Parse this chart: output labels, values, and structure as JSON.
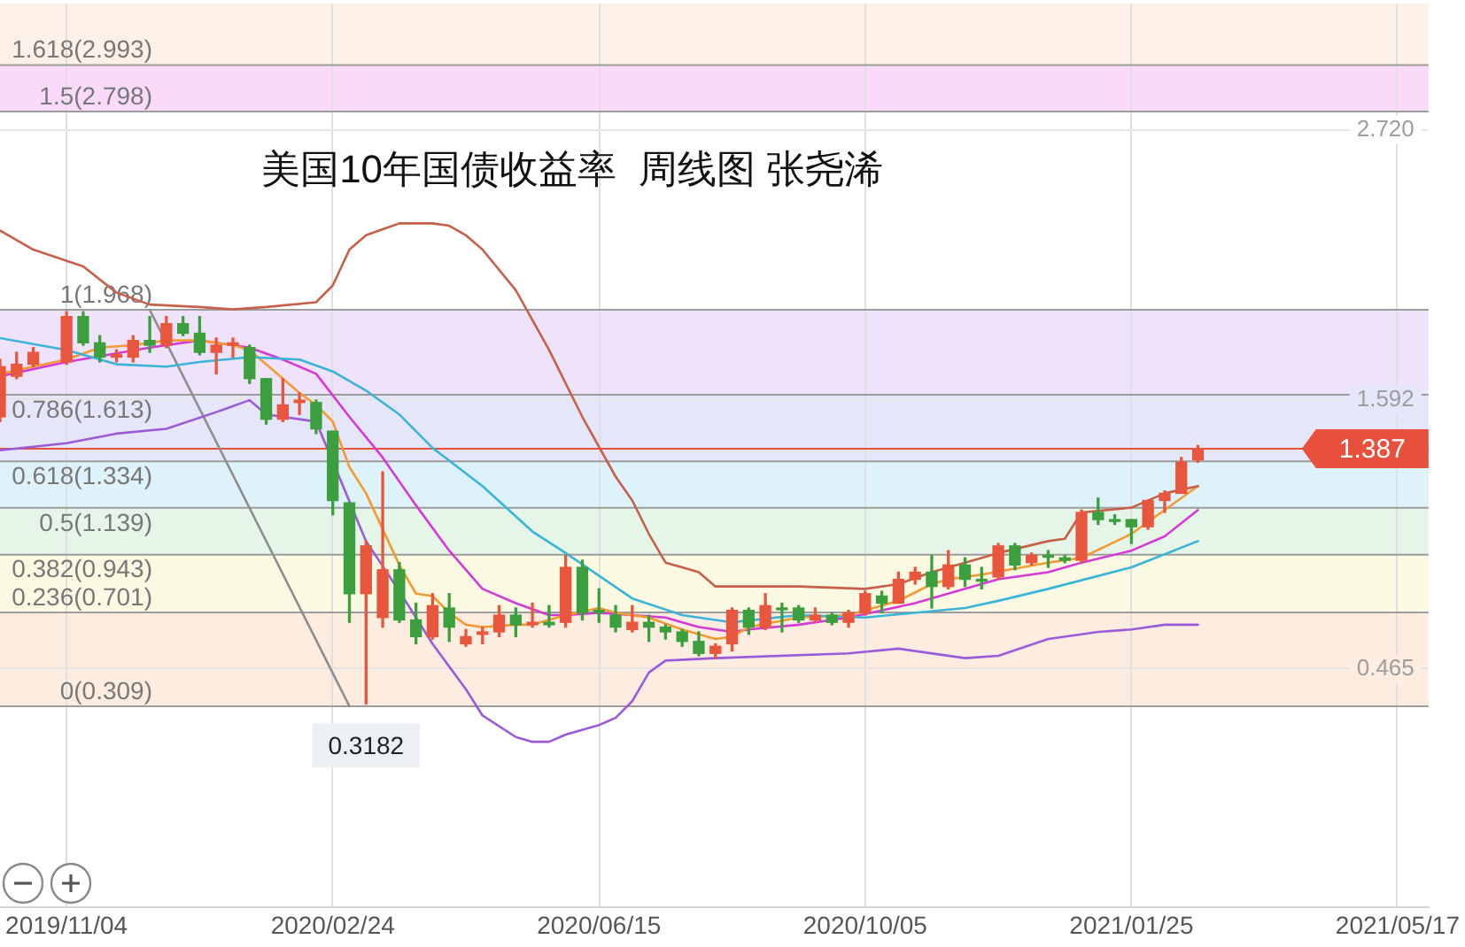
{
  "chart_data": {
    "type": "candlestick",
    "title": "美国10年国债收益率  周线图 张尧浠",
    "x": [
      "2019-10-07",
      "2019-10-14",
      "2019-10-21",
      "2019-11-04",
      "2019-11-11",
      "2019-11-18",
      "2019-11-25",
      "2019-12-02",
      "2019-12-09",
      "2019-12-16",
      "2019-12-23",
      "2019-12-30",
      "2020-01-06",
      "2020-01-13",
      "2020-01-20",
      "2020-01-27",
      "2020-02-03",
      "2020-02-10",
      "2020-02-17",
      "2020-02-24",
      "2020-03-02",
      "2020-03-09",
      "2020-03-16",
      "2020-03-23",
      "2020-03-30",
      "2020-04-06",
      "2020-04-13",
      "2020-04-20",
      "2020-04-27",
      "2020-05-04",
      "2020-05-11",
      "2020-05-18",
      "2020-05-25",
      "2020-06-01",
      "2020-06-08",
      "2020-06-15",
      "2020-06-22",
      "2020-06-29",
      "2020-07-06",
      "2020-07-13",
      "2020-07-20",
      "2020-07-27",
      "2020-08-03",
      "2020-08-10",
      "2020-08-17",
      "2020-08-24",
      "2020-08-31",
      "2020-09-07",
      "2020-09-14",
      "2020-09-21",
      "2020-09-28",
      "2020-10-05",
      "2020-10-12",
      "2020-10-19",
      "2020-10-26",
      "2020-11-02",
      "2020-11-09",
      "2020-11-16",
      "2020-11-23",
      "2020-11-30",
      "2020-12-07",
      "2020-12-14",
      "2020-12-21",
      "2020-12-28",
      "2021-01-04",
      "2021-01-11",
      "2021-01-18",
      "2021-01-25",
      "2021-02-01",
      "2021-02-08",
      "2021-02-15",
      "2021-02-22"
    ],
    "ohlc": [
      [
        1.52,
        1.76,
        1.5,
        1.73
      ],
      [
        1.69,
        1.79,
        1.68,
        1.74
      ],
      [
        1.74,
        1.81,
        1.73,
        1.79
      ],
      [
        1.75,
        1.96,
        1.74,
        1.94
      ],
      [
        1.94,
        1.96,
        1.82,
        1.83
      ],
      [
        1.83,
        1.86,
        1.75,
        1.77
      ],
      [
        1.77,
        1.8,
        1.75,
        1.78
      ],
      [
        1.77,
        1.86,
        1.75,
        1.84
      ],
      [
        1.84,
        1.94,
        1.79,
        1.82
      ],
      [
        1.82,
        1.94,
        1.81,
        1.91
      ],
      [
        1.91,
        1.94,
        1.86,
        1.87
      ],
      [
        1.87,
        1.94,
        1.78,
        1.79
      ],
      [
        1.79,
        1.85,
        1.7,
        1.82
      ],
      [
        1.82,
        1.85,
        1.77,
        1.83
      ],
      [
        1.81,
        1.82,
        1.66,
        1.68
      ],
      [
        1.68,
        1.68,
        1.49,
        1.51
      ],
      [
        1.51,
        1.68,
        1.5,
        1.57
      ],
      [
        1.58,
        1.62,
        1.53,
        1.59
      ],
      [
        1.58,
        1.59,
        1.45,
        1.47
      ],
      [
        1.46,
        1.46,
        1.11,
        1.17
      ],
      [
        1.16,
        1.16,
        0.66,
        0.78
      ],
      [
        0.78,
        1.0,
        0.3182,
        0.98
      ],
      [
        0.68,
        1.29,
        0.64,
        0.88
      ],
      [
        0.88,
        0.91,
        0.66,
        0.67
      ],
      [
        0.67,
        0.74,
        0.57,
        0.6
      ],
      [
        0.6,
        0.78,
        0.59,
        0.73
      ],
      [
        0.72,
        0.78,
        0.58,
        0.64
      ],
      [
        0.57,
        0.63,
        0.56,
        0.6
      ],
      [
        0.61,
        0.64,
        0.57,
        0.62
      ],
      [
        0.62,
        0.73,
        0.6,
        0.69
      ],
      [
        0.69,
        0.72,
        0.6,
        0.65
      ],
      [
        0.65,
        0.74,
        0.64,
        0.66
      ],
      [
        0.66,
        0.73,
        0.64,
        0.65
      ],
      [
        0.66,
        0.94,
        0.64,
        0.89
      ],
      [
        0.89,
        0.92,
        0.67,
        0.7
      ],
      [
        0.71,
        0.8,
        0.66,
        0.7
      ],
      [
        0.69,
        0.73,
        0.62,
        0.64
      ],
      [
        0.63,
        0.73,
        0.62,
        0.66
      ],
      [
        0.66,
        0.69,
        0.58,
        0.64
      ],
      [
        0.64,
        0.65,
        0.59,
        0.62
      ],
      [
        0.62,
        0.63,
        0.56,
        0.58
      ],
      [
        0.58,
        0.62,
        0.52,
        0.53
      ],
      [
        0.53,
        0.57,
        0.51,
        0.56
      ],
      [
        0.57,
        0.72,
        0.54,
        0.71
      ],
      [
        0.71,
        0.72,
        0.61,
        0.64
      ],
      [
        0.64,
        0.78,
        0.63,
        0.73
      ],
      [
        0.72,
        0.74,
        0.62,
        0.72
      ],
      [
        0.72,
        0.73,
        0.66,
        0.67
      ],
      [
        0.67,
        0.72,
        0.66,
        0.69
      ],
      [
        0.69,
        0.7,
        0.65,
        0.66
      ],
      [
        0.66,
        0.71,
        0.64,
        0.7
      ],
      [
        0.7,
        0.79,
        0.69,
        0.78
      ],
      [
        0.77,
        0.79,
        0.7,
        0.74
      ],
      [
        0.74,
        0.87,
        0.74,
        0.84
      ],
      [
        0.84,
        0.89,
        0.82,
        0.87
      ],
      [
        0.87,
        0.94,
        0.72,
        0.81
      ],
      [
        0.81,
        0.96,
        0.8,
        0.9
      ],
      [
        0.9,
        0.93,
        0.81,
        0.84
      ],
      [
        0.84,
        0.89,
        0.8,
        0.84
      ],
      [
        0.85,
        0.99,
        0.84,
        0.98
      ],
      [
        0.98,
        0.99,
        0.88,
        0.9
      ],
      [
        0.91,
        0.95,
        0.9,
        0.94
      ],
      [
        0.94,
        0.96,
        0.89,
        0.94
      ],
      [
        0.93,
        0.94,
        0.91,
        0.92
      ],
      [
        0.92,
        1.13,
        0.91,
        1.12
      ],
      [
        1.12,
        1.18,
        1.07,
        1.09
      ],
      [
        1.09,
        1.11,
        1.07,
        1.09
      ],
      [
        1.09,
        1.09,
        0.99,
        1.06
      ],
      [
        1.06,
        1.17,
        1.05,
        1.17
      ],
      [
        1.17,
        1.21,
        1.12,
        1.2
      ],
      [
        1.2,
        1.35,
        1.2,
        1.33
      ],
      [
        1.34,
        1.4,
        1.33,
        1.387
      ]
    ],
    "colors": [
      "#e8573d",
      "#e8573d",
      "#e8573d",
      "#e8573d",
      "#3a9f3c",
      "#3a9f3c",
      "#e8573d",
      "#e8573d",
      "#3a9f3c",
      "#e8573d",
      "#3a9f3c",
      "#3a9f3c",
      "#e8573d",
      "#e8573d",
      "#3a9f3c",
      "#3a9f3c",
      "#e8573d",
      "#e8573d",
      "#3a9f3c",
      "#3a9f3c",
      "#3a9f3c",
      "#e8573d",
      "#e8573d",
      "#3a9f3c",
      "#3a9f3c",
      "#e8573d",
      "#3a9f3c",
      "#e8573d",
      "#e8573d",
      "#e8573d",
      "#3a9f3c",
      "#e8573d",
      "#3a9f3c",
      "#e8573d",
      "#3a9f3c",
      "#3a9f3c",
      "#3a9f3c",
      "#e8573d",
      "#3a9f3c",
      "#3a9f3c",
      "#3a9f3c",
      "#3a9f3c",
      "#e8573d",
      "#e8573d",
      "#3a9f3c",
      "#e8573d",
      "#3a9f3c",
      "#3a9f3c",
      "#e8573d",
      "#3a9f3c",
      "#e8573d",
      "#e8573d",
      "#3a9f3c",
      "#e8573d",
      "#e8573d",
      "#3a9f3c",
      "#e8573d",
      "#3a9f3c",
      "#3a9f3c",
      "#e8573d",
      "#3a9f3c",
      "#e8573d",
      "#3a9f3c",
      "#3a9f3c",
      "#e8573d",
      "#3a9f3c",
      "#3a9f3c",
      "#3a9f3c",
      "#e8573d",
      "#e8573d",
      "#e8573d",
      "#e8573d"
    ],
    "series": [
      {
        "type": "line",
        "color": "#c6604a",
        "x": [
          "2019-10-07",
          "2019-10-21",
          "2019-11-11",
          "2019-11-25",
          "2019-12-09",
          "2019-12-30",
          "2020-01-13",
          "2020-01-27",
          "2020-02-17",
          "2020-02-24",
          "2020-03-02",
          "2020-03-09",
          "2020-03-23",
          "2020-04-06",
          "2020-04-13",
          "2020-04-20",
          "2020-04-27",
          "2020-05-11",
          "2020-05-25",
          "2020-06-08",
          "2020-06-22",
          "2020-06-29",
          "2020-07-06",
          "2020-07-13",
          "2020-07-27",
          "2020-08-03",
          "2020-09-07",
          "2020-10-05",
          "2020-10-19",
          "2020-11-02",
          "2020-11-16",
          "2020-11-30",
          "2020-12-21",
          "2020-12-28",
          "2021-01-04",
          "2021-01-25",
          "2021-02-08",
          "2021-02-22"
        ],
        "values": [
          2.3,
          2.22,
          2.15,
          2.04,
          1.99,
          1.98,
          1.97,
          1.98,
          2.0,
          2.07,
          2.22,
          2.28,
          2.33,
          2.33,
          2.32,
          2.28,
          2.22,
          2.05,
          1.8,
          1.52,
          1.27,
          1.17,
          1.03,
          0.91,
          0.87,
          0.81,
          0.81,
          0.8,
          0.82,
          0.87,
          0.91,
          0.95,
          1.0,
          1.01,
          1.12,
          1.14,
          1.2,
          1.23
        ]
      },
      {
        "type": "line",
        "color": "#3ab4d9",
        "x": [
          "2019-10-07",
          "2019-11-04",
          "2019-11-25",
          "2019-12-16",
          "2019-12-30",
          "2020-01-20",
          "2020-02-10",
          "2020-02-24",
          "2020-03-09",
          "2020-03-23",
          "2020-04-06",
          "2020-04-27",
          "2020-05-18",
          "2020-06-01",
          "2020-06-29",
          "2020-07-20",
          "2020-08-10",
          "2020-09-07",
          "2020-10-05",
          "2020-11-16",
          "2020-11-30",
          "2020-12-21",
          "2021-01-25",
          "2021-02-22"
        ],
        "values": [
          1.85,
          1.8,
          1.74,
          1.73,
          1.75,
          1.77,
          1.76,
          1.71,
          1.63,
          1.53,
          1.39,
          1.23,
          1.04,
          0.95,
          0.76,
          0.69,
          0.66,
          0.69,
          0.68,
          0.72,
          0.75,
          0.8,
          0.89,
          1.0
        ]
      },
      {
        "type": "line",
        "color": "#f39a33",
        "x": [
          "2019-10-07",
          "2019-10-21",
          "2019-11-04",
          "2019-11-18",
          "2019-12-02",
          "2019-12-16",
          "2019-12-30",
          "2020-01-13",
          "2020-01-20",
          "2020-01-27",
          "2020-02-03",
          "2020-02-10",
          "2020-02-17",
          "2020-02-24",
          "2020-03-02",
          "2020-03-09",
          "2020-03-16",
          "2020-03-23",
          "2020-03-30",
          "2020-04-06",
          "2020-04-13",
          "2020-04-20",
          "2020-04-27",
          "2020-05-11",
          "2020-05-18",
          "2020-06-01",
          "2020-06-15",
          "2020-06-22",
          "2020-07-06",
          "2020-07-20",
          "2020-08-03",
          "2020-08-10",
          "2020-08-17",
          "2020-09-07",
          "2020-09-28",
          "2020-10-05",
          "2020-10-19",
          "2020-11-02",
          "2020-11-09",
          "2020-11-23",
          "2020-12-21",
          "2021-01-04",
          "2021-01-25",
          "2021-02-08",
          "2021-02-22"
        ],
        "values": [
          1.7,
          1.73,
          1.76,
          1.81,
          1.82,
          1.84,
          1.84,
          1.82,
          1.8,
          1.74,
          1.68,
          1.62,
          1.57,
          1.5,
          1.31,
          1.2,
          1.05,
          0.9,
          0.78,
          0.77,
          0.7,
          0.65,
          0.64,
          0.65,
          0.65,
          0.69,
          0.72,
          0.7,
          0.68,
          0.63,
          0.59,
          0.6,
          0.64,
          0.68,
          0.69,
          0.71,
          0.75,
          0.82,
          0.84,
          0.86,
          0.91,
          0.93,
          1.03,
          1.13,
          1.23
        ]
      },
      {
        "type": "line",
        "color": "#d63ad6",
        "x": [
          "2019-10-07",
          "2019-11-04",
          "2019-12-09",
          "2019-12-30",
          "2020-01-20",
          "2020-02-03",
          "2020-02-17",
          "2020-03-02",
          "2020-03-16",
          "2020-03-30",
          "2020-04-13",
          "2020-04-27",
          "2020-05-11",
          "2020-05-25",
          "2020-06-01",
          "2020-06-15",
          "2020-06-29",
          "2020-07-13",
          "2020-07-27",
          "2020-08-10",
          "2020-08-17",
          "2020-09-07",
          "2020-09-28",
          "2020-10-26",
          "2020-11-16",
          "2020-11-30",
          "2020-12-21",
          "2021-01-04",
          "2021-01-25",
          "2021-02-08",
          "2021-02-22"
        ],
        "values": [
          1.69,
          1.75,
          1.81,
          1.84,
          1.81,
          1.76,
          1.7,
          1.52,
          1.35,
          1.15,
          0.96,
          0.8,
          0.74,
          0.69,
          0.69,
          0.7,
          0.69,
          0.68,
          0.64,
          0.62,
          0.63,
          0.65,
          0.68,
          0.74,
          0.8,
          0.84,
          0.87,
          0.91,
          0.96,
          1.02,
          1.13
        ]
      },
      {
        "type": "line",
        "color": "#9b5bd9",
        "x": [
          "2019-10-07",
          "2019-11-04",
          "2019-11-25",
          "2019-12-16",
          "2020-01-06",
          "2020-01-20",
          "2020-01-27",
          "2020-02-17",
          "2020-03-09",
          "2020-03-23",
          "2020-04-06",
          "2020-04-20",
          "2020-04-27",
          "2020-05-11",
          "2020-05-18",
          "2020-05-25",
          "2020-06-01",
          "2020-06-15",
          "2020-06-22",
          "2020-06-29",
          "2020-07-06",
          "2020-07-13",
          "2020-08-03",
          "2020-09-28",
          "2020-10-19",
          "2020-11-16",
          "2020-11-30",
          "2020-12-21",
          "2021-01-11",
          "2021-01-25",
          "2021-02-08",
          "2021-02-22"
        ],
        "values": [
          1.38,
          1.41,
          1.45,
          1.47,
          1.54,
          1.59,
          1.53,
          1.5,
          1.0,
          0.79,
          0.57,
          0.38,
          0.27,
          0.18,
          0.16,
          0.16,
          0.19,
          0.23,
          0.26,
          0.33,
          0.45,
          0.5,
          0.51,
          0.53,
          0.55,
          0.51,
          0.52,
          0.59,
          0.62,
          0.63,
          0.65,
          0.65
        ]
      },
      {
        "type": "line",
        "color": "#8e8e8e",
        "x": [
          "2019-12-09",
          "2020-03-02"
        ],
        "values": [
          1.968,
          0.309
        ]
      }
    ],
    "xlim": [
      "2019-10-07",
      "2021-05-30"
    ],
    "xticks": [
      {
        "value": "2019-11-04",
        "label": "2019/11/04"
      },
      {
        "value": "2020-02-24",
        "label": "2020/02/24"
      },
      {
        "value": "2020-06-15",
        "label": "2020/06/15"
      },
      {
        "value": "2020-10-05",
        "label": "2020/10/05"
      },
      {
        "value": "2021-01-25",
        "label": "2021/01/25"
      },
      {
        "value": "2021-05-17",
        "label": "2021/05/17"
      }
    ],
    "ylim": [
      -0.53,
      3.25
    ],
    "yticks": [
      0.465,
      1.592,
      {
        "value": 2.72,
        "label": "2.720"
      }
    ],
    "grid": true,
    "marker": "none",
    "bands": [
      {
        "axis": "y",
        "from": 2.993,
        "to": 3.25,
        "color": "#fdf1e7"
      },
      {
        "axis": "y",
        "from": 2.798,
        "to": 2.993,
        "color": "#f9dbf9"
      },
      {
        "axis": "y",
        "from": 1.613,
        "to": 1.968,
        "color": "#efe2fb"
      },
      {
        "axis": "y",
        "from": 1.334,
        "to": 1.613,
        "color": "#e6e6fa"
      },
      {
        "axis": "y",
        "from": 1.139,
        "to": 1.334,
        "color": "#ddf2fa"
      },
      {
        "axis": "y",
        "from": 0.943,
        "to": 1.139,
        "color": "#e5f6e8"
      },
      {
        "axis": "y",
        "from": 0.701,
        "to": 0.943,
        "color": "#fbf9e2"
      },
      {
        "axis": "y",
        "from": 0.309,
        "to": 0.701,
        "color": "#fcede0"
      }
    ],
    "ref_lines": [
      {
        "axis": "y",
        "value": 2.993,
        "label": "1.618(2.993)"
      },
      {
        "axis": "y",
        "value": 2.798,
        "label": "1.5(2.798)"
      },
      {
        "axis": "y",
        "value": 1.968,
        "label": "1(1.968)"
      },
      {
        "axis": "y",
        "value": 1.613,
        "label": "0.786(1.613)"
      },
      {
        "axis": "y",
        "value": 1.334,
        "label": "0.618(1.334)"
      },
      {
        "axis": "y",
        "value": 1.139,
        "label": "0.5(1.139)"
      },
      {
        "axis": "y",
        "value": 0.943,
        "label": "0.382(0.943)"
      },
      {
        "axis": "y",
        "value": 0.701,
        "label": "0.236(0.701)"
      },
      {
        "axis": "y",
        "value": 0.309,
        "label": "0(0.309)"
      },
      {
        "axis": "y",
        "value": 1.387,
        "label": "1.387",
        "color": "#e9503c"
      }
    ],
    "annotations": [
      {
        "text": "0.3182",
        "x": "2020-03-09",
        "y": 0.3182
      }
    ]
  }
}
